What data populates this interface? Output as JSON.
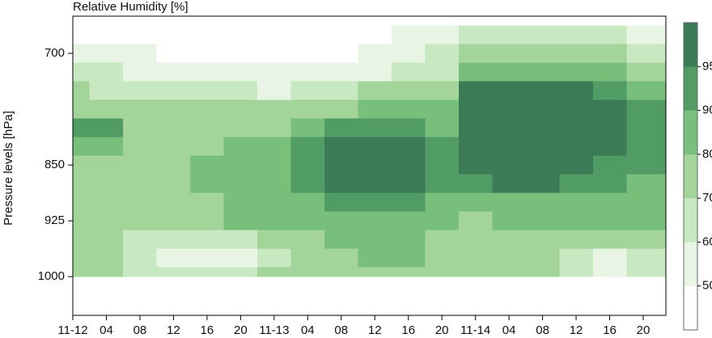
{
  "chart_data": {
    "type": "contour",
    "title": "Relative Humidity [%]",
    "y_label": "Pressure levels [hPa]",
    "x": [
      0,
      4,
      8,
      12,
      16,
      20,
      24,
      28,
      32,
      36,
      40,
      44,
      48,
      52,
      56,
      60,
      64,
      68
    ],
    "y": [
      675,
      700,
      725,
      750,
      775,
      800,
      825,
      850,
      875,
      900,
      925,
      950,
      975,
      1000
    ],
    "z": [
      [
        45,
        45,
        45,
        45,
        45,
        45,
        45,
        45,
        45,
        48,
        52,
        55,
        62,
        65,
        65,
        62,
        60,
        58
      ],
      [
        55,
        52,
        50,
        48,
        48,
        45,
        45,
        45,
        48,
        50,
        55,
        60,
        75,
        75,
        72,
        72,
        70,
        65
      ],
      [
        62,
        60,
        58,
        56,
        55,
        52,
        50,
        52,
        55,
        58,
        62,
        68,
        85,
        88,
        88,
        85,
        80,
        75
      ],
      [
        70,
        68,
        66,
        64,
        62,
        60,
        58,
        62,
        66,
        70,
        72,
        78,
        96,
        96,
        96,
        96,
        92,
        85
      ],
      [
        76,
        75,
        74,
        72,
        70,
        70,
        70,
        74,
        78,
        82,
        84,
        86,
        96,
        97,
        97,
        97,
        96,
        92
      ],
      [
        91,
        92,
        78,
        76,
        76,
        76,
        78,
        82,
        92,
        94,
        92,
        88,
        97,
        97,
        97,
        97,
        96,
        93
      ],
      [
        80,
        80,
        78,
        78,
        78,
        80,
        82,
        90,
        96,
        96,
        95,
        90,
        97,
        97,
        97,
        96,
        95,
        92
      ],
      [
        78,
        78,
        78,
        78,
        80,
        80,
        84,
        92,
        97,
        97,
        96,
        92,
        96,
        96,
        96,
        95,
        93,
        90
      ],
      [
        76,
        76,
        76,
        78,
        80,
        80,
        84,
        92,
        97,
        97,
        96,
        90,
        92,
        96,
        95,
        92,
        90,
        88
      ],
      [
        74,
        74,
        74,
        76,
        78,
        80,
        82,
        86,
        92,
        94,
        92,
        86,
        86,
        88,
        88,
        86,
        85,
        84
      ],
      [
        72,
        72,
        74,
        76,
        78,
        80,
        82,
        84,
        86,
        88,
        86,
        82,
        78,
        80,
        82,
        82,
        80,
        80
      ],
      [
        70,
        70,
        68,
        64,
        60,
        62,
        70,
        76,
        80,
        82,
        82,
        78,
        72,
        72,
        76,
        72,
        70,
        70
      ],
      [
        72,
        70,
        62,
        56,
        55,
        56,
        68,
        74,
        78,
        80,
        80,
        76,
        72,
        72,
        74,
        62,
        55,
        60
      ],
      [
        74,
        72,
        68,
        64,
        62,
        64,
        70,
        75,
        78,
        78,
        78,
        76,
        74,
        74,
        72,
        66,
        58,
        62
      ]
    ],
    "xlim": [
      0,
      70.7
    ],
    "xticks": [
      {
        "value": 0,
        "label": "11-12"
      },
      {
        "value": 4,
        "label": "04"
      },
      {
        "value": 8,
        "label": "08"
      },
      {
        "value": 12,
        "label": "12"
      },
      {
        "value": 16,
        "label": "16"
      },
      {
        "value": 20,
        "label": "20"
      },
      {
        "value": 24,
        "label": "11-13"
      },
      {
        "value": 28,
        "label": "04"
      },
      {
        "value": 32,
        "label": "08"
      },
      {
        "value": 36,
        "label": "12"
      },
      {
        "value": 40,
        "label": "16"
      },
      {
        "value": 44,
        "label": "20"
      },
      {
        "value": 48,
        "label": "11-14"
      },
      {
        "value": 52,
        "label": "04"
      },
      {
        "value": 56,
        "label": "08"
      },
      {
        "value": 60,
        "label": "12"
      },
      {
        "value": 64,
        "label": "16"
      },
      {
        "value": 68,
        "label": "20"
      }
    ],
    "ylim": [
      1052,
      650
    ],
    "yticks": [
      700,
      850,
      925,
      1000
    ],
    "colorbar_levels": [
      50,
      60,
      70,
      80,
      90,
      95
    ],
    "colors": [
      "#ffffff",
      "#e8f5e4",
      "#c7e8c0",
      "#a3d59b",
      "#78bf7c",
      "#519b65",
      "#3b7b56"
    ]
  }
}
